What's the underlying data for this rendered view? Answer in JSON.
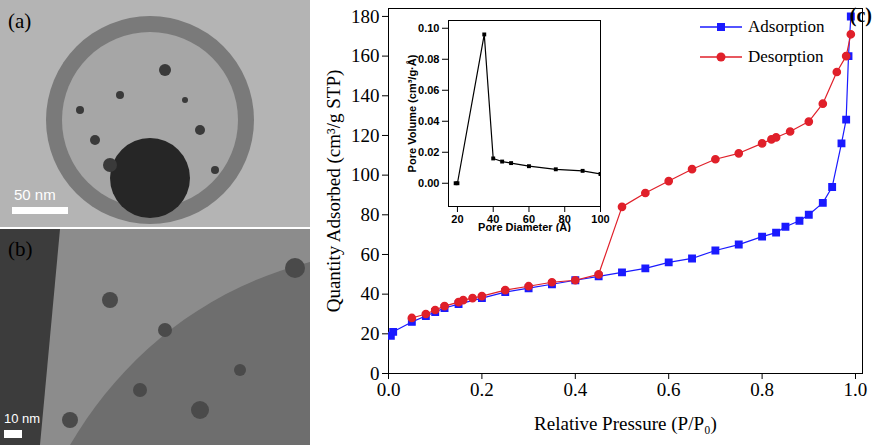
{
  "images": [
    {
      "label": "(a)",
      "scale_bar": "50 nm"
    },
    {
      "label": "(b)",
      "scale_bar": "10 nm"
    }
  ],
  "chart_data": [
    {
      "type": "line",
      "annotations": [
        "(c)"
      ],
      "x_label": "Relative Pressure (P/P₀)",
      "y_label": "Quantity Adsorbed (cm³/g STP)",
      "xlim": [
        0,
        1.015
      ],
      "xticks": [
        {
          "value": 0,
          "label": "0.0"
        },
        {
          "value": 0.2,
          "label": "0.2"
        },
        {
          "value": 0.4,
          "label": "0.4"
        },
        {
          "value": 0.6,
          "label": "0.6"
        },
        {
          "value": 0.8,
          "label": "0.8"
        },
        {
          "value": 1,
          "label": "1.0"
        }
      ],
      "ylim": [
        0,
        184
      ],
      "yticks": [
        0,
        20,
        40,
        60,
        80,
        100,
        120,
        140,
        160,
        180
      ],
      "legend": "upper right",
      "series": [
        {
          "name": "Adsorption",
          "color": "#1a1aff",
          "marker": "square",
          "x": [
            0.005,
            0.01,
            0.05,
            0.08,
            0.1,
            0.12,
            0.15,
            0.2,
            0.25,
            0.3,
            0.35,
            0.4,
            0.45,
            0.5,
            0.55,
            0.6,
            0.65,
            0.7,
            0.75,
            0.8,
            0.83,
            0.85,
            0.88,
            0.9,
            0.93,
            0.95,
            0.97,
            0.98,
            0.985,
            0.99
          ],
          "values": [
            19,
            21,
            26,
            29,
            31,
            33,
            35,
            38,
            41,
            43,
            45,
            47,
            49,
            51,
            53,
            56,
            58,
            62,
            65,
            69,
            71,
            74,
            77,
            80,
            86,
            94,
            116,
            128,
            160,
            180
          ]
        },
        {
          "name": "Desorption",
          "color": "#e0202a",
          "marker": "circle",
          "x": [
            0.05,
            0.08,
            0.1,
            0.12,
            0.15,
            0.16,
            0.18,
            0.2,
            0.25,
            0.3,
            0.35,
            0.4,
            0.45,
            0.5,
            0.55,
            0.6,
            0.65,
            0.7,
            0.75,
            0.8,
            0.82,
            0.83,
            0.86,
            0.9,
            0.93,
            0.96,
            0.98,
            0.99
          ],
          "values": [
            28,
            30,
            32,
            34,
            36,
            37,
            38,
            39,
            42,
            44,
            46,
            47,
            50,
            84,
            91,
            97,
            103,
            108,
            111,
            116,
            118,
            119,
            122,
            127,
            136,
            152,
            160,
            171
          ]
        }
      ]
    },
    {
      "type": "line",
      "x_label": "Pore Diameter (Å)",
      "y_label": "Pore Volume (cm³/g·Å)",
      "xlim": [
        15,
        100
      ],
      "xticks": [
        20,
        40,
        60,
        80,
        100
      ],
      "ylim": [
        -0.015,
        0.105
      ],
      "yticks": [
        {
          "value": 0,
          "label": "0.00"
        },
        {
          "value": 0.02,
          "label": "0.02"
        },
        {
          "value": 0.04,
          "label": "0.04"
        },
        {
          "value": 0.06,
          "label": "0.06"
        },
        {
          "value": 0.08,
          "label": "0.08"
        },
        {
          "value": 0.1,
          "label": "0.10"
        }
      ],
      "color": "#000000",
      "marker": "square",
      "x": [
        19,
        20,
        35,
        40,
        45,
        50,
        60,
        75,
        90,
        100
      ],
      "values": [
        0.0,
        0.0,
        0.096,
        0.016,
        0.014,
        0.013,
        0.011,
        0.009,
        0.008,
        0.006
      ]
    }
  ]
}
